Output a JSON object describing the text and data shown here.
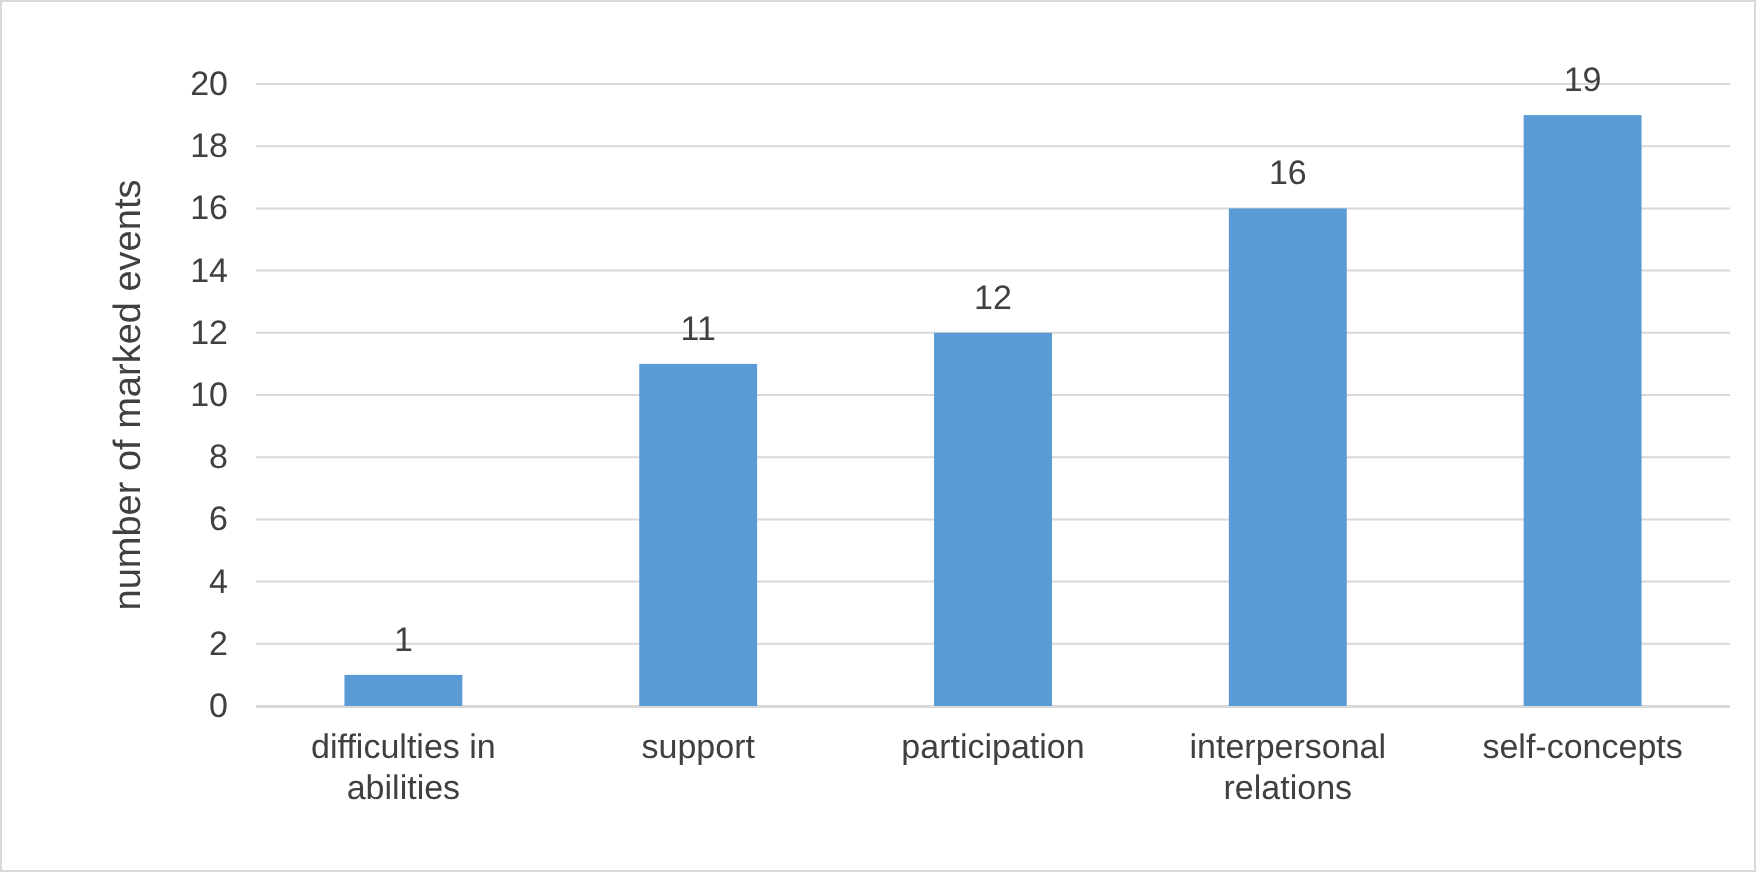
{
  "chart_data": {
    "type": "bar",
    "ylabel": "number of marked events",
    "categories": [
      "difficulties in abilities",
      "support",
      "participation",
      "interpersonal relations",
      "self-concepts"
    ],
    "values": [
      1,
      11,
      12,
      16,
      19
    ],
    "color": "#5b9bd5",
    "ylim": [
      0,
      20
    ],
    "yticks": [
      0,
      2,
      4,
      6,
      8,
      10,
      12,
      14,
      16,
      18,
      20
    ],
    "grid": "y",
    "data_labels": true
  }
}
